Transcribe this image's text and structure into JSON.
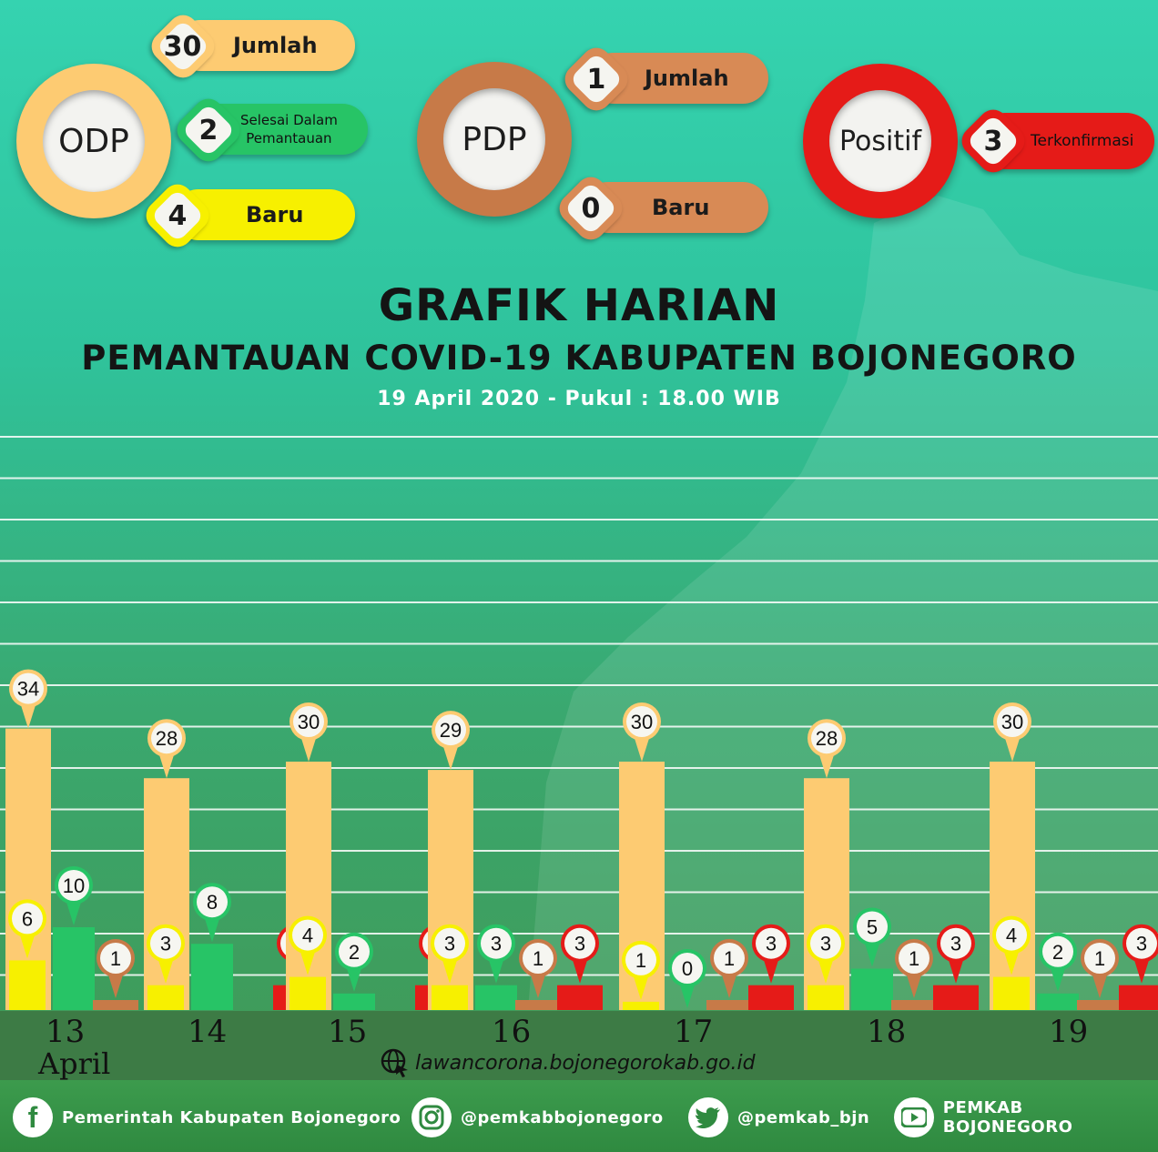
{
  "summary": {
    "odp": {
      "label": "ODP",
      "jumlah_value": "30",
      "jumlah_label": "Jumlah",
      "selesai_value": "2",
      "selesai_label_1": "Selesai Dalam",
      "selesai_label_2": "Pemantauan",
      "baru_value": "4",
      "baru_label": "Baru"
    },
    "pdp": {
      "label": "PDP",
      "jumlah_value": "1",
      "jumlah_label": "Jumlah",
      "baru_value": "0",
      "baru_label": "Baru"
    },
    "positif": {
      "label": "Positif",
      "value": "3",
      "value_label": "Terkonfirmasi"
    }
  },
  "header": {
    "title": "GRAFIK HARIAN",
    "subtitle": "PEMANTAUAN COVID-19 KABUPATEN BOJONEGORO",
    "dateline": "19 April 2020 - Pukul : 18.00 WIB"
  },
  "month_label": "April",
  "website": "lawancorona.bojonegorokab.go.id",
  "social": {
    "facebook": "Pemerintah Kabupaten Bojonegoro",
    "instagram": "@pemkabbojonegoro",
    "twitter": "@pemkab_bjn",
    "youtube": "PEMKAB BOJONEGORO"
  },
  "colors": {
    "odp": "#fdcb72",
    "baru": "#f7f000",
    "selesai": "#27c466",
    "pdp": "#c77a48",
    "positif": "#e51b18"
  },
  "chart_data": {
    "type": "bar",
    "categories": [
      "13",
      "14",
      "15",
      "16",
      "17",
      "18",
      "19"
    ],
    "series": [
      {
        "values": [
          34,
          28,
          30,
          29,
          30,
          28,
          30
        ]
      },
      {
        "values": [
          6,
          3,
          4,
          3,
          1,
          3,
          4
        ]
      },
      {
        "values": [
          10,
          8,
          2,
          3,
          0,
          5,
          2
        ]
      },
      {
        "values": [
          1,
          0,
          0,
          1,
          1,
          1,
          1
        ]
      },
      {
        "values": [
          0,
          3,
          3,
          3,
          3,
          3,
          3
        ]
      }
    ],
    "grid": true
  }
}
